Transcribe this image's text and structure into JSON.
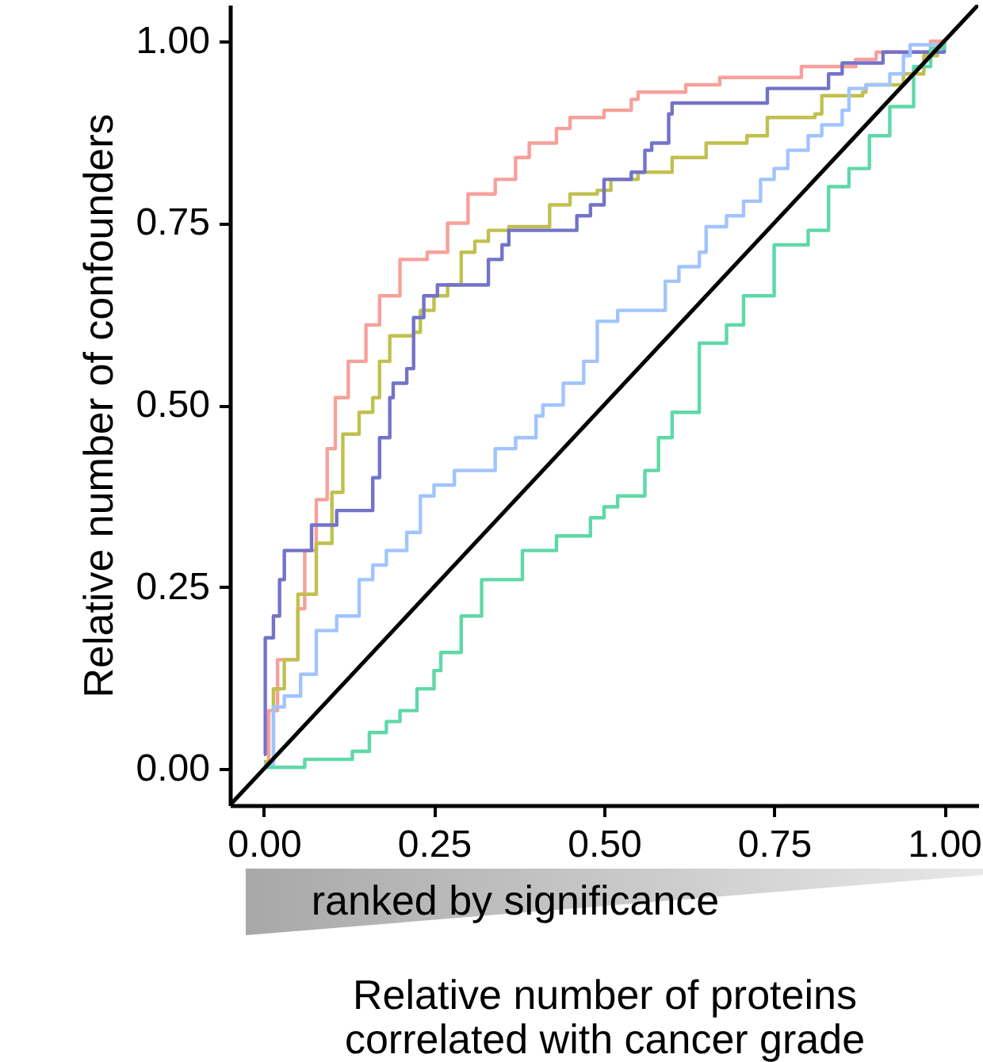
{
  "chart_data": {
    "type": "step",
    "xlabel": "Relative number of proteins\ncorrelated with cancer grade",
    "ylabel": "Relative number of confounders",
    "xlim": [
      -0.05,
      1.05
    ],
    "ylim": [
      -0.05,
      1.05
    ],
    "xticks": [
      {
        "value": 0,
        "label": "0.00"
      },
      {
        "value": 0.25,
        "label": "0.25"
      },
      {
        "value": 0.5,
        "label": "0.50"
      },
      {
        "value": 0.75,
        "label": "0.75"
      },
      {
        "value": 1,
        "label": "1.00"
      }
    ],
    "yticks": [
      {
        "value": 0,
        "label": "0.00"
      },
      {
        "value": 0.25,
        "label": "0.25"
      },
      {
        "value": 0.5,
        "label": "0.50"
      },
      {
        "value": 0.75,
        "label": "0.75"
      },
      {
        "value": 1,
        "label": "1.00"
      }
    ],
    "annotations": [
      "ranked by significance"
    ],
    "series": [
      {
        "color": "#f8a09a",
        "x": [
          0,
          0.007,
          0.02,
          0.05,
          0.06,
          0.077,
          0.093,
          0.105,
          0.124,
          0.15,
          0.17,
          0.2,
          0.24,
          0.27,
          0.3,
          0.34,
          0.37,
          0.39,
          0.43,
          0.45,
          0.5,
          0.54,
          0.55,
          0.61,
          0.62,
          0.67,
          0.79,
          0.87,
          0.9,
          0.98,
          1.0
        ],
        "values": [
          0.006,
          0.08,
          0.15,
          0.22,
          0.3,
          0.37,
          0.44,
          0.51,
          0.56,
          0.61,
          0.65,
          0.7,
          0.71,
          0.75,
          0.79,
          0.81,
          0.84,
          0.86,
          0.88,
          0.895,
          0.905,
          0.92,
          0.93,
          0.93,
          0.94,
          0.95,
          0.965,
          0.975,
          0.985,
          1.0,
          1.0
        ]
      },
      {
        "color": "#c0c050",
        "x": [
          0,
          0.014,
          0.03,
          0.05,
          0.077,
          0.1,
          0.116,
          0.14,
          0.16,
          0.17,
          0.185,
          0.22,
          0.23,
          0.25,
          0.27,
          0.29,
          0.31,
          0.33,
          0.36,
          0.42,
          0.45,
          0.49,
          0.51,
          0.55,
          0.6,
          0.65,
          0.71,
          0.74,
          0.81,
          0.82,
          0.88,
          0.885,
          0.94,
          0.97,
          0.99,
          1.0
        ],
        "values": [
          0.01,
          0.11,
          0.15,
          0.24,
          0.31,
          0.38,
          0.46,
          0.49,
          0.51,
          0.56,
          0.595,
          0.6,
          0.63,
          0.65,
          0.665,
          0.71,
          0.725,
          0.74,
          0.745,
          0.775,
          0.79,
          0.795,
          0.81,
          0.82,
          0.84,
          0.86,
          0.87,
          0.895,
          0.9,
          0.925,
          0.93,
          0.94,
          0.955,
          0.98,
          0.995,
          1.0
        ]
      },
      {
        "color": "#7373c8",
        "x": [
          0,
          0.002,
          0.014,
          0.023,
          0.03,
          0.07,
          0.107,
          0.16,
          0.17,
          0.185,
          0.19,
          0.21,
          0.22,
          0.235,
          0.255,
          0.33,
          0.35,
          0.36,
          0.46,
          0.48,
          0.5,
          0.54,
          0.56,
          0.57,
          0.595,
          0.6,
          0.74,
          0.83,
          0.85,
          0.91,
          1.0
        ],
        "values": [
          0.02,
          0.18,
          0.21,
          0.26,
          0.3,
          0.335,
          0.355,
          0.4,
          0.455,
          0.51,
          0.53,
          0.55,
          0.62,
          0.65,
          0.665,
          0.7,
          0.72,
          0.74,
          0.76,
          0.775,
          0.81,
          0.82,
          0.85,
          0.86,
          0.9,
          0.915,
          0.935,
          0.955,
          0.97,
          0.985,
          1.0
        ]
      },
      {
        "color": "#a0c4ff",
        "x": [
          0,
          0.014,
          0.03,
          0.054,
          0.077,
          0.107,
          0.14,
          0.16,
          0.18,
          0.21,
          0.23,
          0.25,
          0.28,
          0.34,
          0.37,
          0.4,
          0.41,
          0.44,
          0.47,
          0.49,
          0.52,
          0.59,
          0.61,
          0.64,
          0.65,
          0.68,
          0.705,
          0.73,
          0.75,
          0.77,
          0.8,
          0.82,
          0.85,
          0.86,
          0.885,
          0.92,
          0.94,
          0.95,
          1.0
        ],
        "values": [
          0.006,
          0.085,
          0.1,
          0.13,
          0.19,
          0.21,
          0.26,
          0.28,
          0.3,
          0.325,
          0.375,
          0.39,
          0.41,
          0.44,
          0.455,
          0.485,
          0.5,
          0.53,
          0.56,
          0.615,
          0.63,
          0.67,
          0.69,
          0.71,
          0.745,
          0.76,
          0.78,
          0.81,
          0.825,
          0.85,
          0.87,
          0.885,
          0.905,
          0.935,
          0.94,
          0.955,
          0.98,
          0.995,
          1.0
        ]
      },
      {
        "color": "#5fd8a8",
        "x": [
          0,
          0.06,
          0.13,
          0.155,
          0.18,
          0.2,
          0.225,
          0.25,
          0.26,
          0.29,
          0.32,
          0.38,
          0.43,
          0.48,
          0.5,
          0.52,
          0.56,
          0.58,
          0.6,
          0.64,
          0.68,
          0.705,
          0.75,
          0.8,
          0.83,
          0.86,
          0.89,
          0.92,
          0.955,
          0.98,
          1.0
        ],
        "values": [
          0.002,
          0.013,
          0.024,
          0.05,
          0.065,
          0.08,
          0.11,
          0.135,
          0.16,
          0.21,
          0.26,
          0.3,
          0.32,
          0.345,
          0.36,
          0.375,
          0.41,
          0.455,
          0.49,
          0.585,
          0.61,
          0.65,
          0.72,
          0.74,
          0.8,
          0.825,
          0.87,
          0.91,
          0.965,
          0.99,
          1.0
        ]
      },
      {
        "type": "line",
        "color": "#000000",
        "x": [
          -0.05,
          1.05
        ],
        "values": [
          -0.05,
          1.05
        ]
      }
    ]
  }
}
